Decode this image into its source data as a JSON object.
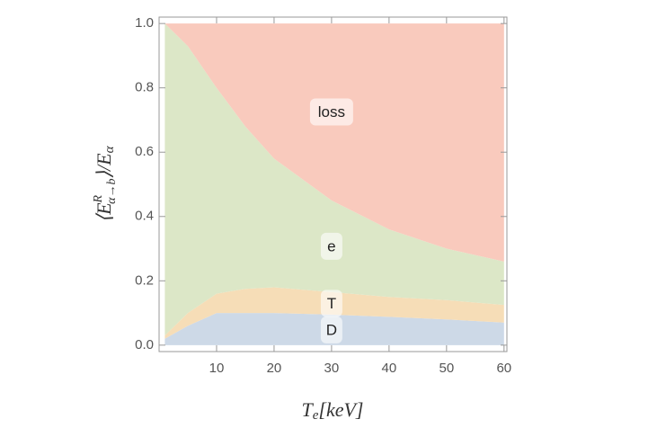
{
  "chart_data": {
    "type": "stacked_area",
    "xlabel": [
      "T",
      "e",
      "[keV]"
    ],
    "ylabel": [
      "⟨E",
      "R",
      "α→b",
      "⟩/E",
      "α"
    ],
    "x": [
      1,
      5,
      10,
      15,
      20,
      30,
      40,
      50,
      60
    ],
    "series": [
      {
        "name": "D",
        "color": "#cdd9e7",
        "values": [
          0.02,
          0.06,
          0.1,
          0.1,
          0.1,
          0.095,
          0.088,
          0.08,
          0.07
        ]
      },
      {
        "name": "T",
        "color": "#f6ddb7",
        "values": [
          0.01,
          0.04,
          0.06,
          0.075,
          0.08,
          0.07,
          0.062,
          0.06,
          0.055
        ]
      },
      {
        "name": "e",
        "color": "#dce7c7",
        "values": [
          0.97,
          0.83,
          0.64,
          0.505,
          0.4,
          0.285,
          0.21,
          0.16,
          0.135
        ]
      },
      {
        "name": "loss",
        "color": "#f9cabd",
        "values": [
          0,
          0.07,
          0.2,
          0.32,
          0.42,
          0.55,
          0.64,
          0.7,
          0.74
        ]
      }
    ],
    "xlim": [
      0,
      60.5
    ],
    "ylim": [
      -0.02,
      1.02
    ],
    "xticks": [
      10,
      20,
      30,
      40,
      50,
      60
    ],
    "yticks": [
      {
        "value": 0,
        "label": "0.0"
      },
      {
        "value": 0.2,
        "label": "0.2"
      },
      {
        "value": 0.4,
        "label": "0.4"
      },
      {
        "value": 0.6,
        "label": "0.6"
      },
      {
        "value": 0.8,
        "label": "0.8"
      },
      {
        "value": 1,
        "label": "1.0"
      }
    ]
  }
}
